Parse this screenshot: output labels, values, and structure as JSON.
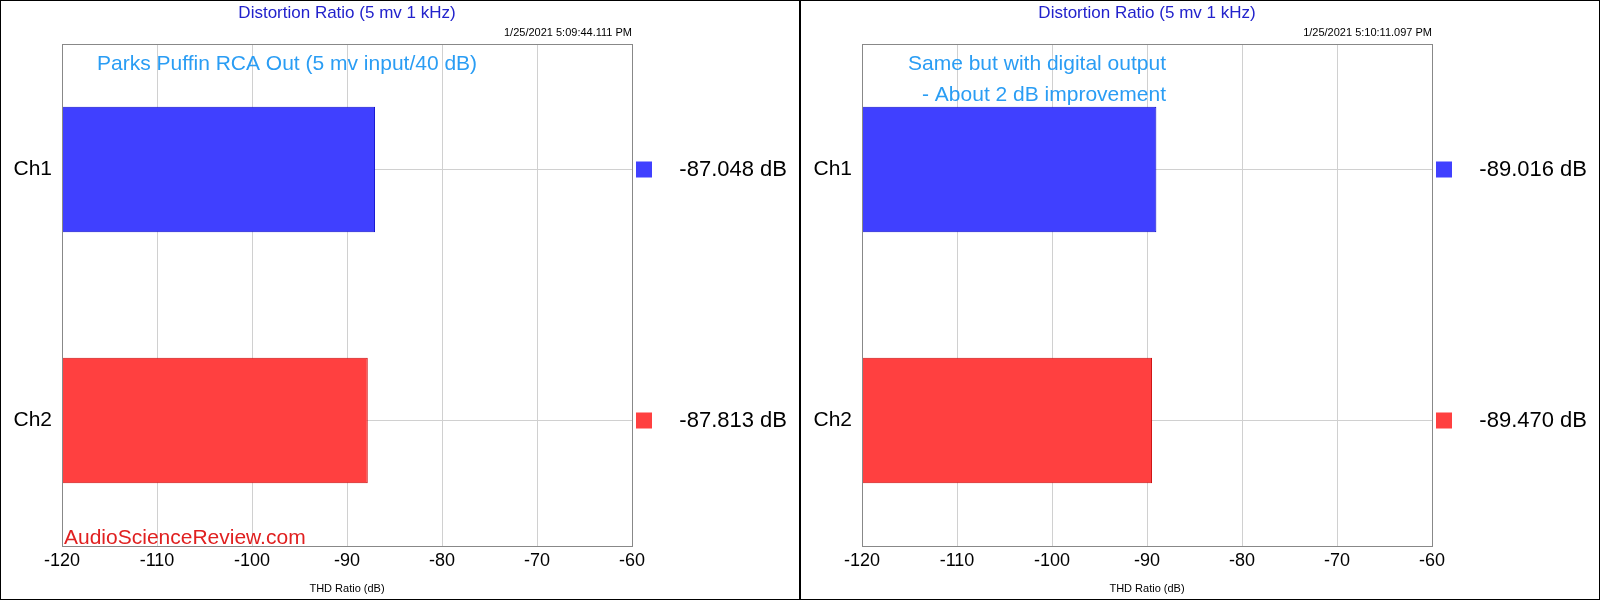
{
  "chart_data": [
    {
      "type": "bar",
      "orientation": "horizontal",
      "title": "Distortion Ratio (5 mv 1 kHz)",
      "timestamp": "1/25/2021 5:09:44.111 PM",
      "annotation": [
        "Parks Puffin RCA Out (5 mv input/40 dB)"
      ],
      "watermark": "AudioScienceReview.com",
      "x_label": "THD Ratio (dB)",
      "categories": [
        "Ch1",
        "Ch2"
      ],
      "values": [
        -87.048,
        -87.813
      ],
      "value_labels": [
        "-87.048 dB",
        "-87.813 dB"
      ],
      "data_labels": true,
      "colors": [
        "#4040ff",
        "#ff4040"
      ],
      "xlim": [
        -120,
        -60
      ],
      "xticks": [
        -120,
        -110,
        -100,
        -90,
        -80,
        -70,
        -60
      ],
      "grid": true
    },
    {
      "type": "bar",
      "orientation": "horizontal",
      "title": "Distortion Ratio (5 mv 1 kHz)",
      "timestamp": "1/25/2021 5:10:11.097 PM",
      "annotation": [
        "Same but with digital output",
        "- About 2 dB improvement"
      ],
      "x_label": "THD Ratio (dB)",
      "categories": [
        "Ch1",
        "Ch2"
      ],
      "values": [
        -89.016,
        -89.47
      ],
      "value_labels": [
        "-89.016 dB",
        "-89.470 dB"
      ],
      "data_labels": true,
      "colors": [
        "#4040ff",
        "#ff4040"
      ],
      "xlim": [
        -120,
        -60
      ],
      "xticks": [
        -120,
        -110,
        -100,
        -90,
        -80,
        -70,
        -60
      ],
      "grid": true
    }
  ]
}
